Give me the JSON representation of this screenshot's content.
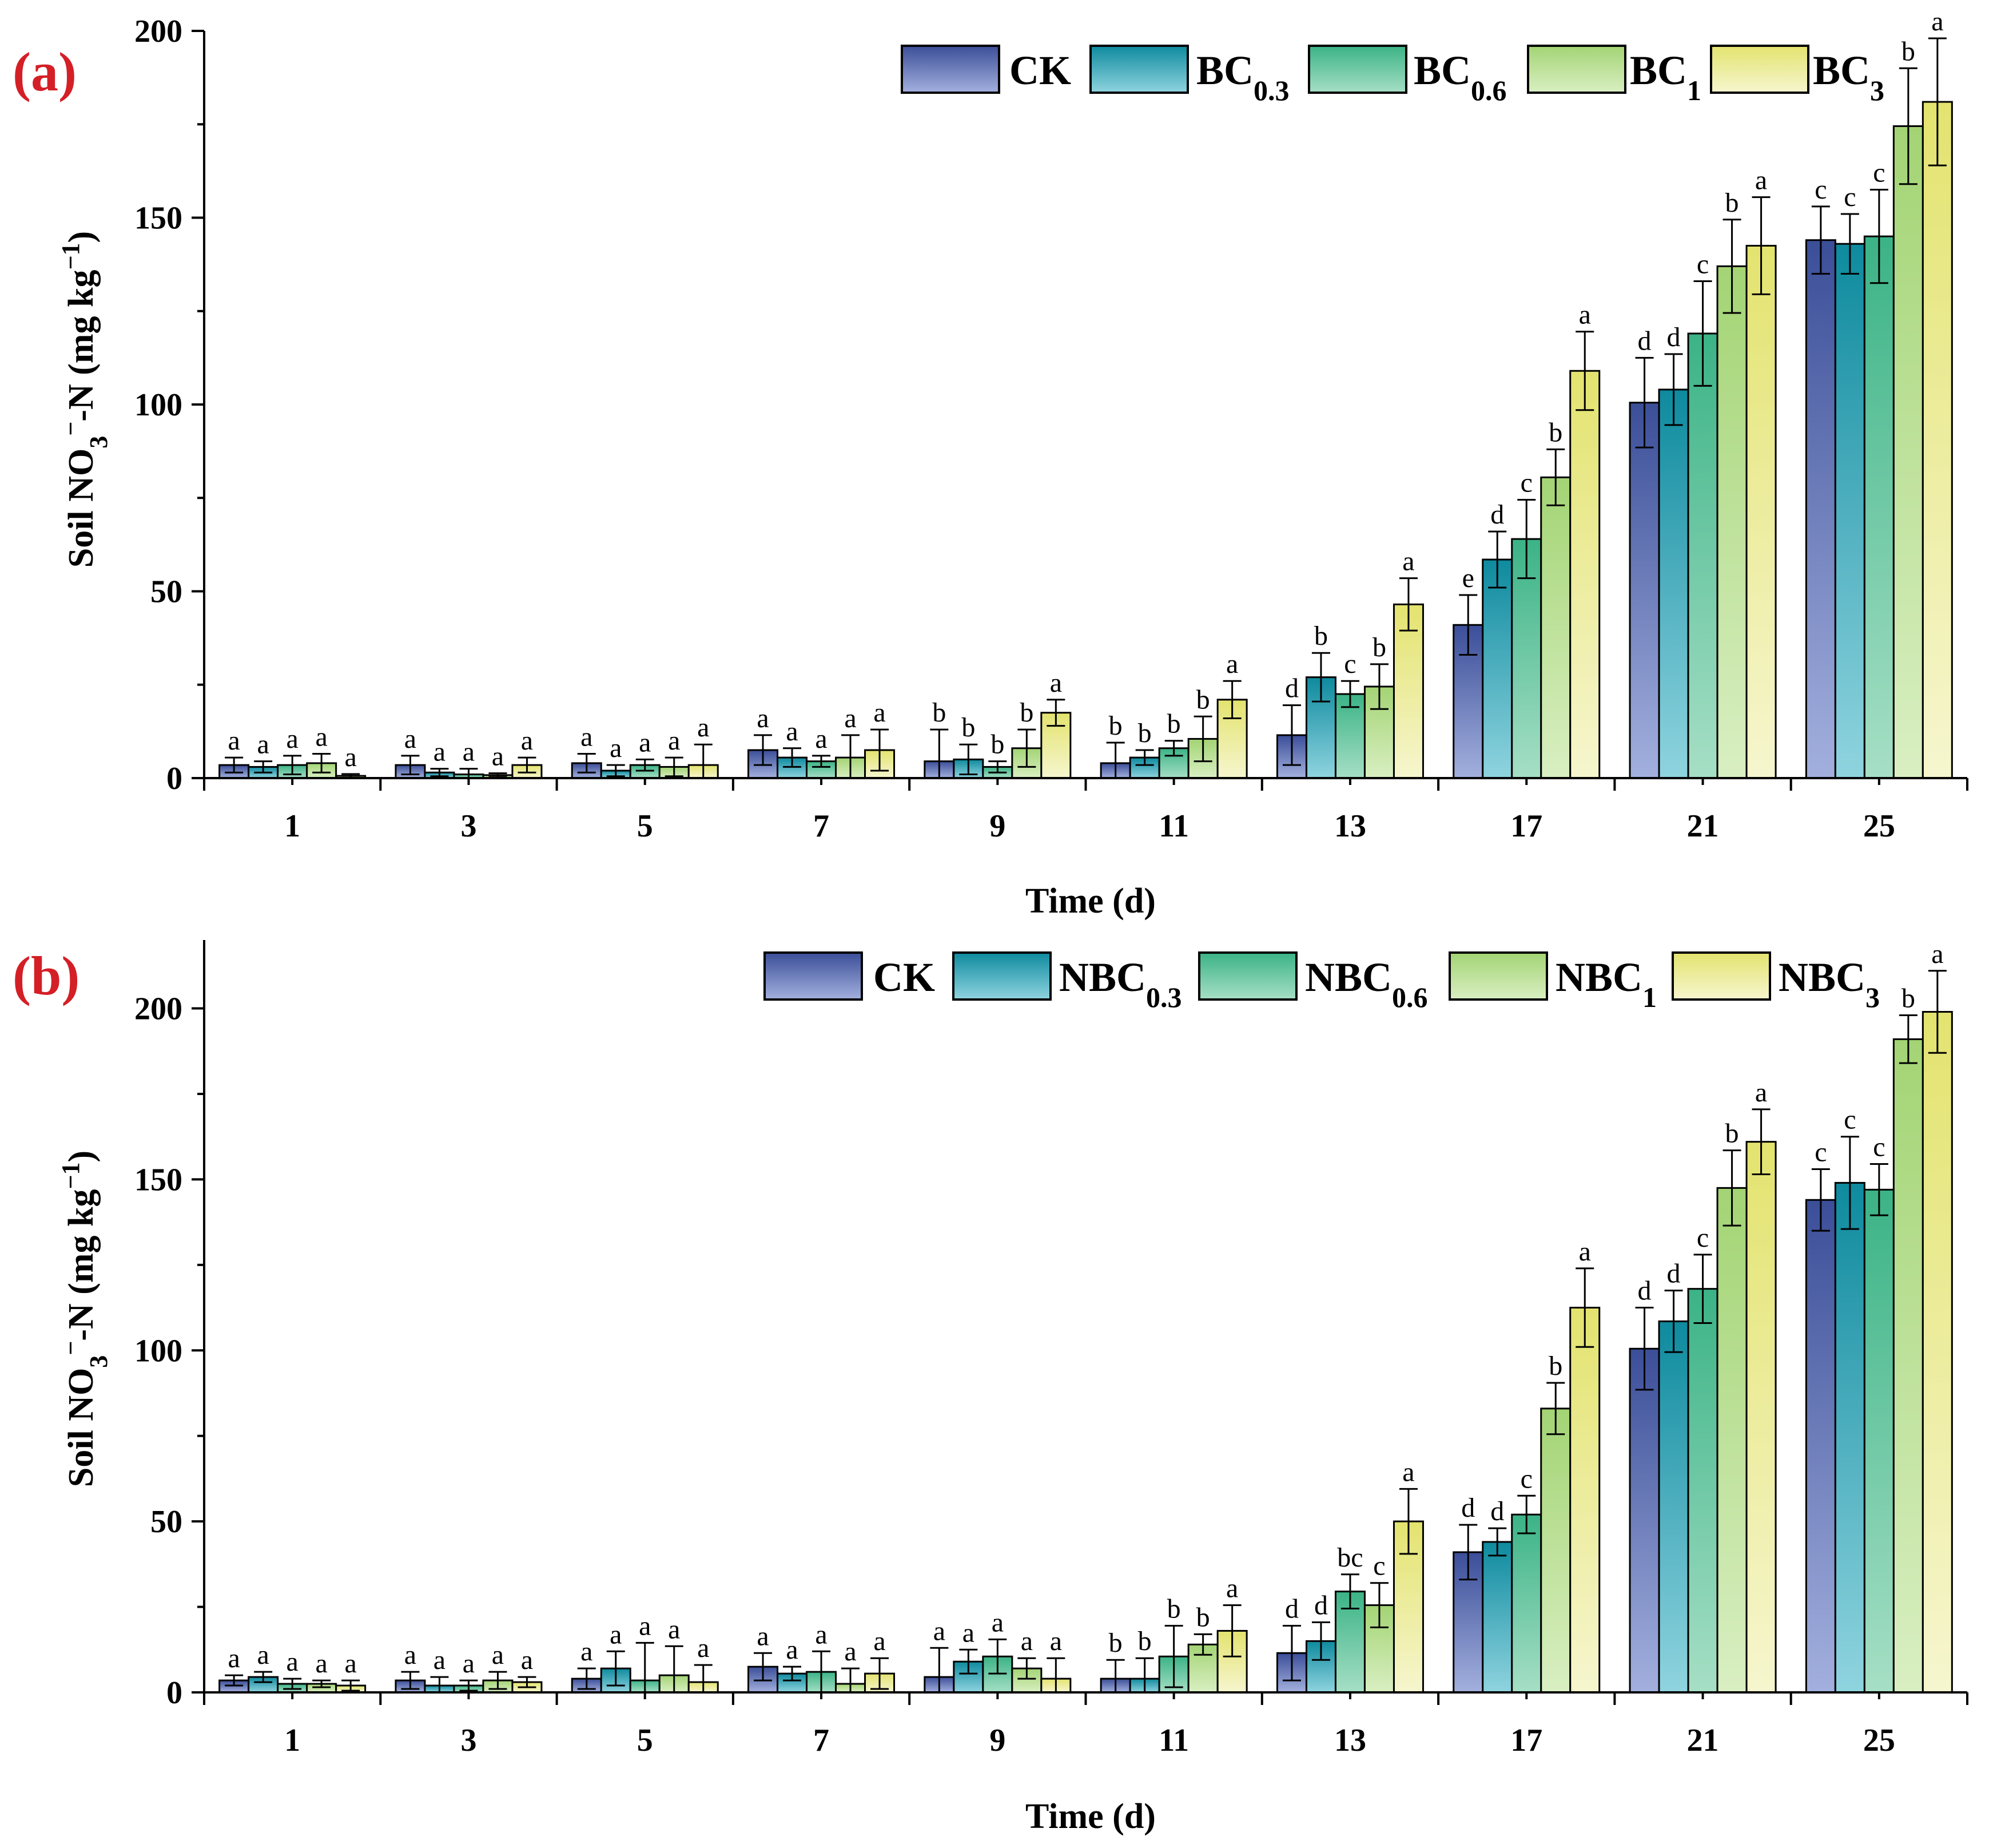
{
  "figure": {
    "panels": [
      {
        "label": "(a)",
        "x_title": "Time (d)",
        "y_title": {
          "prefix": "Soil NO",
          "sub": "3",
          "sup": "−",
          "mid": "-N (mg kg",
          "sup2": "−1",
          "suffix": ")"
        },
        "legend": [
          {
            "base": "CK",
            "sub": ""
          },
          {
            "base": "BC",
            "sub": "0.3"
          },
          {
            "base": "BC",
            "sub": "0.6"
          },
          {
            "base": "BC",
            "sub": "1"
          },
          {
            "base": "BC",
            "sub": "3"
          }
        ]
      },
      {
        "label": "(b)",
        "x_title": "Time (d)",
        "y_title": {
          "prefix": "Soil NO",
          "sub": "3",
          "sup": "−",
          "mid": "-N (mg kg",
          "sup2": "−1",
          "suffix": ")"
        },
        "legend": [
          {
            "base": "CK",
            "sub": ""
          },
          {
            "base": "NBC",
            "sub": "0.3"
          },
          {
            "base": "NBC",
            "sub": "0.6"
          },
          {
            "base": "NBC",
            "sub": "1"
          },
          {
            "base": "NBC",
            "sub": "3"
          }
        ]
      }
    ]
  },
  "colors": {
    "series": [
      {
        "top": "#3b4e98",
        "bottom": "#a3b0de"
      },
      {
        "top": "#0e8a9e",
        "bottom": "#8fd4df"
      },
      {
        "top": "#3bb386",
        "bottom": "#a6dfc5"
      },
      {
        "top": "#a3d474",
        "bottom": "#d9efc2"
      },
      {
        "top": "#e3e36f",
        "bottom": "#f6f6cf"
      }
    ],
    "panel_label": "#d41f26"
  },
  "chart_data": [
    {
      "type": "bar",
      "title": "(a)",
      "xlabel": "Time (d)",
      "ylabel": "Soil NO3−-N (mg kg−1)",
      "categories": [
        "1",
        "3",
        "5",
        "7",
        "9",
        "11",
        "13",
        "17",
        "21",
        "25"
      ],
      "ylim": [
        0,
        200
      ],
      "yticks": [
        0,
        50,
        100,
        150,
        200
      ],
      "legend_position": "top-right",
      "series": [
        {
          "name": "CK",
          "values": [
            3.5,
            3.5,
            4,
            7.5,
            4.5,
            4,
            11.5,
            41,
            100.5,
            144
          ],
          "errors": [
            2,
            2.5,
            2.5,
            4,
            8.5,
            5.5,
            8,
            8,
            12,
            9
          ],
          "labels": [
            "a",
            "a",
            "a",
            "a",
            "b",
            "b",
            "d",
            "e",
            "d",
            "c"
          ]
        },
        {
          "name": "BC0.3",
          "values": [
            3,
            1.5,
            2,
            5.5,
            5,
            5.5,
            27,
            58.5,
            104,
            143
          ],
          "errors": [
            1.5,
            1,
            1.5,
            2.5,
            4,
            2,
            6.5,
            7.5,
            9.5,
            8
          ],
          "labels": [
            "a",
            "a",
            "a",
            "a",
            "b",
            "b",
            "b",
            "d",
            "d",
            "c"
          ]
        },
        {
          "name": "BC0.6",
          "values": [
            3.5,
            1,
            3.5,
            4.5,
            3,
            8,
            22.5,
            64,
            119,
            145
          ],
          "errors": [
            2.5,
            1.5,
            1.5,
            1.5,
            1.5,
            2,
            3.5,
            10.5,
            14,
            12.5
          ],
          "labels": [
            "a",
            "a",
            "a",
            "a",
            "b",
            "b",
            "c",
            "c",
            "c",
            "c"
          ]
        },
        {
          "name": "BC1",
          "values": [
            4,
            0.8,
            3,
            5.5,
            8,
            10.5,
            24.5,
            80.5,
            137,
            174.5
          ],
          "errors": [
            2.5,
            0.5,
            2.5,
            6,
            5,
            6,
            6,
            7.5,
            12.5,
            15.5
          ],
          "labels": [
            "a",
            "a",
            "a",
            "a",
            "b",
            "b",
            "b",
            "b",
            "b",
            "b"
          ]
        },
        {
          "name": "BC3",
          "values": [
            0.6,
            3.5,
            3.5,
            7.5,
            17.5,
            21,
            46.5,
            109,
            142.5,
            181
          ],
          "errors": [
            0.5,
            2,
            5.5,
            5.5,
            3.5,
            5,
            7,
            10.5,
            13,
            17
          ],
          "labels": [
            "a",
            "a",
            "a",
            "a",
            "a",
            "a",
            "a",
            "a",
            "a",
            "a"
          ]
        }
      ]
    },
    {
      "type": "bar",
      "title": "(b)",
      "xlabel": "Time (d)",
      "ylabel": "Soil NO3−-N (mg kg−1)",
      "categories": [
        "1",
        "3",
        "5",
        "7",
        "9",
        "11",
        "13",
        "17",
        "21",
        "25"
      ],
      "ylim": [
        0,
        220
      ],
      "yticks": [
        0,
        50,
        100,
        150,
        200
      ],
      "legend_position": "top-right",
      "series": [
        {
          "name": "CK",
          "values": [
            3.5,
            3.5,
            4,
            7.5,
            4.5,
            4,
            11.5,
            41,
            100.5,
            144
          ],
          "errors": [
            1.5,
            2.5,
            3,
            4,
            8.5,
            5.5,
            8,
            8,
            12,
            9
          ],
          "labels": [
            "a",
            "a",
            "a",
            "a",
            "a",
            "b",
            "d",
            "d",
            "d",
            "c"
          ]
        },
        {
          "name": "NBC0.3",
          "values": [
            4.5,
            2,
            7,
            5.5,
            9,
            4,
            15,
            44,
            108.5,
            149
          ],
          "errors": [
            1.5,
            2.5,
            5,
            2,
            3.5,
            6,
            5.5,
            4,
            9,
            13.5
          ],
          "labels": [
            "a",
            "a",
            "a",
            "a",
            "a",
            "b",
            "d",
            "d",
            "d",
            "c"
          ]
        },
        {
          "name": "NBC0.6",
          "values": [
            2.5,
            2,
            3.5,
            6,
            10.5,
            10.5,
            29.5,
            52,
            118,
            147
          ],
          "errors": [
            1.5,
            1.5,
            11,
            6,
            5,
            9,
            5,
            5.5,
            10,
            7.5
          ],
          "labels": [
            "a",
            "a",
            "a",
            "a",
            "a",
            "b",
            "bc",
            "c",
            "c",
            "c"
          ]
        },
        {
          "name": "NBC1",
          "values": [
            2.5,
            3.5,
            5,
            2.5,
            7,
            14,
            25.5,
            83,
            147.5,
            191
          ],
          "errors": [
            1,
            2.5,
            8.5,
            4.5,
            3,
            3,
            6.5,
            7.5,
            11,
            7
          ],
          "labels": [
            "a",
            "a",
            "a",
            "a",
            "a",
            "b",
            "c",
            "b",
            "b",
            "b"
          ]
        },
        {
          "name": "NBC3",
          "values": [
            2,
            3,
            3,
            5.5,
            4,
            18,
            50,
            112.5,
            161,
            199
          ],
          "errors": [
            1.5,
            1.5,
            5,
            4.5,
            6,
            7.5,
            9.5,
            11.5,
            9.5,
            12
          ],
          "labels": [
            "a",
            "a",
            "a",
            "a",
            "a",
            "a",
            "a",
            "a",
            "a",
            "a"
          ]
        }
      ]
    }
  ]
}
